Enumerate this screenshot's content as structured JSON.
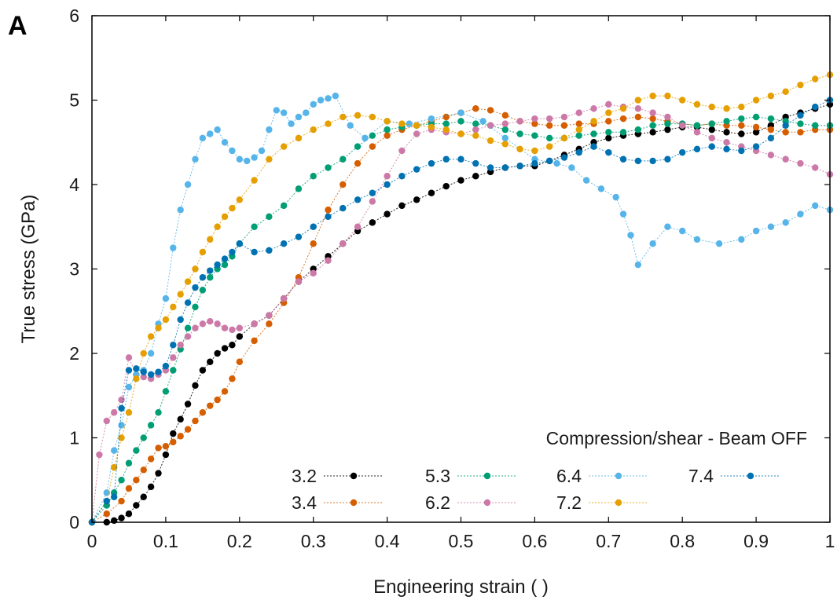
{
  "panel_label": "A",
  "chart_data": {
    "type": "line",
    "title": "",
    "xlabel": "Engineering strain ( )",
    "ylabel": "True stress (GPa)",
    "xlim": [
      0,
      1
    ],
    "ylim": [
      0,
      6
    ],
    "x_ticks": [
      0,
      0.1,
      0.2,
      0.3,
      0.4,
      0.5,
      0.6,
      0.7,
      0.8,
      0.9,
      1
    ],
    "x_tick_labels": [
      "0",
      "0.1",
      "0.2",
      "0.3",
      "0.4",
      "0.5",
      "0.6",
      "0.7",
      "0.8",
      "0.9",
      "1"
    ],
    "y_ticks": [
      0,
      1,
      2,
      3,
      4,
      5,
      6
    ],
    "y_tick_labels": [
      "0",
      "1",
      "2",
      "3",
      "4",
      "5",
      "6"
    ],
    "grid": false,
    "legend_title": "Compression/shear - Beam OFF",
    "legend_position": "bottom-right",
    "series": [
      {
        "name": "3.2",
        "color": "#000000",
        "x": [
          0,
          0.02,
          0.03,
          0.04,
          0.05,
          0.06,
          0.07,
          0.08,
          0.09,
          0.1,
          0.11,
          0.12,
          0.13,
          0.14,
          0.15,
          0.16,
          0.17,
          0.18,
          0.19,
          0.2,
          0.22,
          0.24,
          0.26,
          0.28,
          0.3,
          0.32,
          0.34,
          0.36,
          0.38,
          0.4,
          0.42,
          0.44,
          0.46,
          0.48,
          0.5,
          0.52,
          0.54,
          0.56,
          0.58,
          0.6,
          0.62,
          0.64,
          0.66,
          0.68,
          0.7,
          0.72,
          0.74,
          0.76,
          0.78,
          0.8,
          0.82,
          0.84,
          0.86,
          0.88,
          0.9,
          0.92,
          0.94,
          0.96,
          0.98,
          1.0
        ],
        "y": [
          0,
          0,
          0.02,
          0.05,
          0.1,
          0.2,
          0.3,
          0.42,
          0.58,
          0.8,
          1.05,
          1.22,
          1.4,
          1.62,
          1.8,
          1.9,
          2.0,
          2.06,
          2.1,
          2.2,
          2.35,
          2.45,
          2.65,
          2.85,
          3.0,
          3.15,
          3.3,
          3.45,
          3.55,
          3.65,
          3.75,
          3.82,
          3.9,
          3.98,
          4.05,
          4.1,
          4.15,
          4.2,
          4.22,
          4.22,
          4.28,
          4.35,
          4.42,
          4.5,
          4.55,
          4.58,
          4.6,
          4.62,
          4.65,
          4.68,
          4.68,
          4.65,
          4.62,
          4.6,
          4.62,
          4.7,
          4.8,
          4.85,
          4.9,
          4.95
        ]
      },
      {
        "name": "3.4",
        "color": "#d55e00",
        "x": [
          0,
          0.02,
          0.04,
          0.05,
          0.06,
          0.07,
          0.08,
          0.09,
          0.1,
          0.11,
          0.12,
          0.13,
          0.14,
          0.15,
          0.16,
          0.17,
          0.18,
          0.19,
          0.2,
          0.22,
          0.24,
          0.26,
          0.28,
          0.3,
          0.32,
          0.34,
          0.36,
          0.38,
          0.4,
          0.42,
          0.44,
          0.46,
          0.48,
          0.5,
          0.52,
          0.54,
          0.56,
          0.58,
          0.6,
          0.62,
          0.64,
          0.66,
          0.68,
          0.7,
          0.72,
          0.74,
          0.76,
          0.78,
          0.8,
          0.82,
          0.84,
          0.86,
          0.88,
          0.9,
          0.92,
          0.94,
          0.96,
          0.98,
          1.0
        ],
        "y": [
          0,
          0.1,
          0.25,
          0.4,
          0.5,
          0.62,
          0.75,
          0.88,
          0.9,
          0.95,
          1.02,
          1.1,
          1.2,
          1.3,
          1.38,
          1.45,
          1.55,
          1.7,
          1.9,
          2.15,
          2.35,
          2.6,
          2.9,
          3.3,
          3.7,
          4.0,
          4.25,
          4.45,
          4.58,
          4.65,
          4.7,
          4.75,
          4.8,
          4.85,
          4.9,
          4.88,
          4.82,
          4.75,
          4.72,
          4.7,
          4.7,
          4.72,
          4.72,
          4.75,
          4.78,
          4.8,
          4.78,
          4.75,
          4.72,
          4.7,
          4.72,
          4.7,
          4.7,
          4.68,
          4.65,
          4.62,
          4.62,
          4.65,
          4.65
        ]
      },
      {
        "name": "5.3",
        "color": "#009e73",
        "x": [
          0,
          0.02,
          0.03,
          0.04,
          0.05,
          0.06,
          0.07,
          0.08,
          0.09,
          0.1,
          0.11,
          0.12,
          0.13,
          0.14,
          0.15,
          0.16,
          0.17,
          0.18,
          0.19,
          0.2,
          0.22,
          0.24,
          0.26,
          0.28,
          0.3,
          0.32,
          0.34,
          0.36,
          0.38,
          0.4,
          0.42,
          0.44,
          0.46,
          0.48,
          0.5,
          0.52,
          0.54,
          0.56,
          0.58,
          0.6,
          0.62,
          0.64,
          0.66,
          0.68,
          0.7,
          0.72,
          0.74,
          0.76,
          0.78,
          0.8,
          0.82,
          0.84,
          0.86,
          0.88,
          0.9,
          0.92,
          0.94,
          0.96,
          0.98,
          1.0
        ],
        "y": [
          0,
          0.2,
          0.35,
          0.5,
          0.7,
          0.85,
          1.0,
          1.15,
          1.3,
          1.55,
          1.8,
          2.05,
          2.3,
          2.55,
          2.75,
          2.9,
          3.0,
          3.05,
          3.15,
          3.3,
          3.5,
          3.62,
          3.75,
          3.95,
          4.1,
          4.2,
          4.3,
          4.45,
          4.58,
          4.65,
          4.68,
          4.7,
          4.72,
          4.72,
          4.75,
          4.72,
          4.7,
          4.65,
          4.6,
          4.58,
          4.55,
          4.55,
          4.58,
          4.6,
          4.62,
          4.62,
          4.65,
          4.7,
          4.72,
          4.72,
          4.7,
          4.72,
          4.75,
          4.78,
          4.8,
          4.78,
          4.75,
          4.72,
          4.7,
          4.7
        ]
      },
      {
        "name": "6.2",
        "color": "#cc79a7",
        "x": [
          0,
          0.01,
          0.02,
          0.03,
          0.04,
          0.05,
          0.06,
          0.07,
          0.08,
          0.09,
          0.1,
          0.11,
          0.12,
          0.13,
          0.14,
          0.15,
          0.16,
          0.17,
          0.18,
          0.19,
          0.2,
          0.22,
          0.24,
          0.26,
          0.28,
          0.3,
          0.32,
          0.34,
          0.36,
          0.38,
          0.4,
          0.42,
          0.44,
          0.46,
          0.48,
          0.5,
          0.52,
          0.54,
          0.56,
          0.58,
          0.6,
          0.62,
          0.64,
          0.66,
          0.68,
          0.7,
          0.72,
          0.74,
          0.76,
          0.78,
          0.8,
          0.82,
          0.84,
          0.86,
          0.88,
          0.9,
          0.92,
          0.94,
          0.96,
          0.98,
          1.0
        ],
        "y": [
          0,
          0.8,
          1.2,
          1.3,
          1.45,
          1.95,
          1.75,
          1.72,
          1.7,
          1.75,
          1.8,
          1.95,
          2.1,
          2.2,
          2.3,
          2.35,
          2.38,
          2.35,
          2.3,
          2.28,
          2.3,
          2.35,
          2.45,
          2.65,
          2.85,
          2.95,
          3.1,
          3.3,
          3.5,
          3.8,
          4.1,
          4.4,
          4.6,
          4.65,
          4.62,
          4.6,
          4.65,
          4.7,
          4.72,
          4.75,
          4.78,
          4.78,
          4.8,
          4.85,
          4.9,
          4.95,
          4.92,
          4.9,
          4.85,
          4.8,
          4.7,
          4.62,
          4.55,
          4.5,
          4.45,
          4.4,
          4.35,
          4.3,
          4.25,
          4.2,
          4.12
        ]
      },
      {
        "name": "6.4",
        "color": "#56b4e9",
        "x": [
          0,
          0.02,
          0.03,
          0.04,
          0.05,
          0.06,
          0.07,
          0.08,
          0.09,
          0.1,
          0.11,
          0.12,
          0.13,
          0.14,
          0.15,
          0.16,
          0.17,
          0.18,
          0.19,
          0.2,
          0.21,
          0.22,
          0.23,
          0.24,
          0.25,
          0.26,
          0.27,
          0.28,
          0.29,
          0.3,
          0.31,
          0.32,
          0.33,
          0.35,
          0.37,
          0.4,
          0.43,
          0.46,
          0.5,
          0.53,
          0.56,
          0.6,
          0.63,
          0.65,
          0.67,
          0.69,
          0.71,
          0.72,
          0.73,
          0.74,
          0.76,
          0.78,
          0.8,
          0.82,
          0.85,
          0.88,
          0.9,
          0.92,
          0.94,
          0.96,
          0.98,
          1.0
        ],
        "y": [
          0,
          0.35,
          0.85,
          1.15,
          1.6,
          1.75,
          1.8,
          2.0,
          2.35,
          2.65,
          3.25,
          3.7,
          4.0,
          4.3,
          4.55,
          4.6,
          4.65,
          4.5,
          4.4,
          4.3,
          4.28,
          4.32,
          4.4,
          4.65,
          4.88,
          4.85,
          4.72,
          4.8,
          4.85,
          4.95,
          5.0,
          5.02,
          5.05,
          4.7,
          4.55,
          4.75,
          4.72,
          4.78,
          4.85,
          4.75,
          4.55,
          4.3,
          4.25,
          4.2,
          4.05,
          3.95,
          3.85,
          3.65,
          3.4,
          3.05,
          3.3,
          3.5,
          3.45,
          3.35,
          3.3,
          3.35,
          3.45,
          3.5,
          3.55,
          3.65,
          3.75,
          3.7
        ]
      },
      {
        "name": "7.2",
        "color": "#e69f00",
        "x": [
          0,
          0.02,
          0.03,
          0.04,
          0.05,
          0.06,
          0.07,
          0.08,
          0.09,
          0.1,
          0.11,
          0.12,
          0.13,
          0.14,
          0.15,
          0.16,
          0.17,
          0.18,
          0.19,
          0.2,
          0.22,
          0.24,
          0.26,
          0.28,
          0.3,
          0.32,
          0.34,
          0.36,
          0.38,
          0.4,
          0.42,
          0.44,
          0.46,
          0.48,
          0.5,
          0.52,
          0.54,
          0.56,
          0.58,
          0.6,
          0.62,
          0.64,
          0.66,
          0.68,
          0.7,
          0.72,
          0.74,
          0.76,
          0.78,
          0.8,
          0.82,
          0.84,
          0.86,
          0.88,
          0.9,
          0.92,
          0.94,
          0.96,
          0.98,
          1.0
        ],
        "y": [
          0,
          0.25,
          0.65,
          1.0,
          1.3,
          1.7,
          2.0,
          2.2,
          2.3,
          2.4,
          2.55,
          2.7,
          2.85,
          3.0,
          3.2,
          3.35,
          3.5,
          3.62,
          3.72,
          3.82,
          4.05,
          4.3,
          4.45,
          4.55,
          4.65,
          4.72,
          4.8,
          4.82,
          4.8,
          4.75,
          4.72,
          4.7,
          4.68,
          4.65,
          4.6,
          4.58,
          4.52,
          4.48,
          4.42,
          4.4,
          4.45,
          4.55,
          4.65,
          4.75,
          4.85,
          4.9,
          5.0,
          5.05,
          5.05,
          5.0,
          4.95,
          4.92,
          4.9,
          4.92,
          5.0,
          5.05,
          5.1,
          5.18,
          5.25,
          5.3
        ]
      },
      {
        "name": "7.4",
        "color": "#0072b2",
        "x": [
          0,
          0.02,
          0.03,
          0.04,
          0.05,
          0.06,
          0.07,
          0.08,
          0.09,
          0.1,
          0.11,
          0.12,
          0.13,
          0.14,
          0.15,
          0.16,
          0.17,
          0.18,
          0.19,
          0.2,
          0.22,
          0.24,
          0.26,
          0.28,
          0.3,
          0.32,
          0.34,
          0.36,
          0.38,
          0.4,
          0.42,
          0.44,
          0.46,
          0.48,
          0.5,
          0.52,
          0.54,
          0.56,
          0.58,
          0.6,
          0.62,
          0.64,
          0.66,
          0.68,
          0.7,
          0.72,
          0.74,
          0.76,
          0.78,
          0.8,
          0.82,
          0.84,
          0.86,
          0.88,
          0.9,
          0.92,
          0.94,
          0.96,
          0.98,
          1.0
        ],
        "y": [
          0,
          0.25,
          0.3,
          1.35,
          1.8,
          1.82,
          1.78,
          1.75,
          1.78,
          1.85,
          2.1,
          2.4,
          2.6,
          2.78,
          2.9,
          2.98,
          3.05,
          3.12,
          3.2,
          3.3,
          3.2,
          3.22,
          3.3,
          3.38,
          3.5,
          3.62,
          3.72,
          3.82,
          3.9,
          4.0,
          4.1,
          4.18,
          4.25,
          4.3,
          4.3,
          4.25,
          4.2,
          4.2,
          4.22,
          4.25,
          4.28,
          4.32,
          4.38,
          4.45,
          4.38,
          4.3,
          4.28,
          4.28,
          4.3,
          4.38,
          4.42,
          4.45,
          4.42,
          4.4,
          4.45,
          4.55,
          4.7,
          4.82,
          4.92,
          5.0
        ]
      }
    ]
  }
}
